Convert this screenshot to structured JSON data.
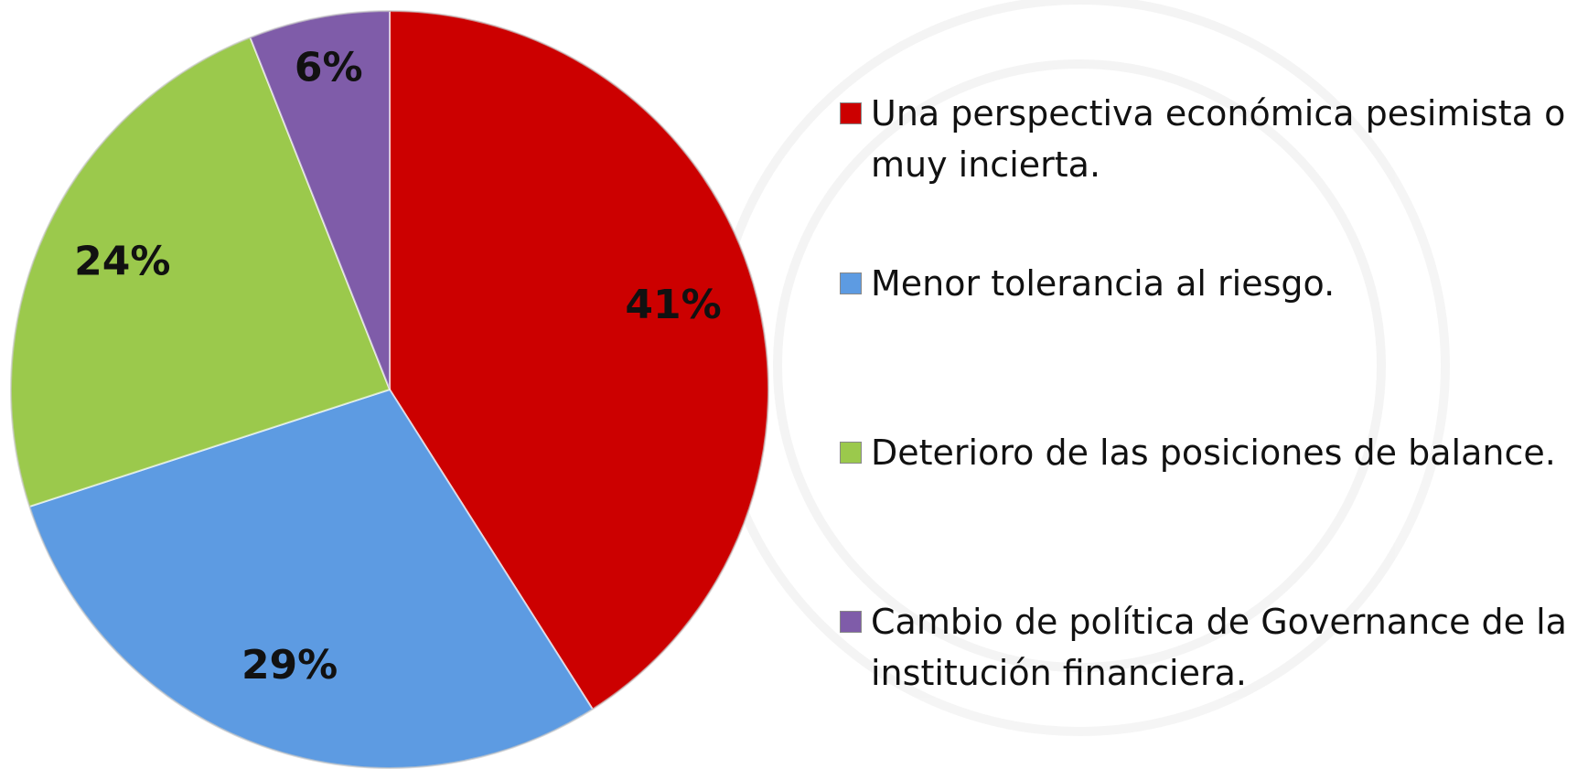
{
  "chart_data": {
    "type": "pie",
    "categories": [
      "Una perspectiva económica pesimista o muy incierta.",
      "Menor tolerancia al riesgo.",
      "Deterioro de las posiciones de balance.",
      "Cambio de política de Governance de la institución financiera."
    ],
    "values": [
      41,
      29,
      24,
      6
    ],
    "value_labels": [
      "41%",
      "29%",
      "24%",
      "6%"
    ],
    "colors": [
      "#cc0000",
      "#5d9be2",
      "#9bc94c",
      "#7f5ca9"
    ],
    "legend": "right"
  }
}
